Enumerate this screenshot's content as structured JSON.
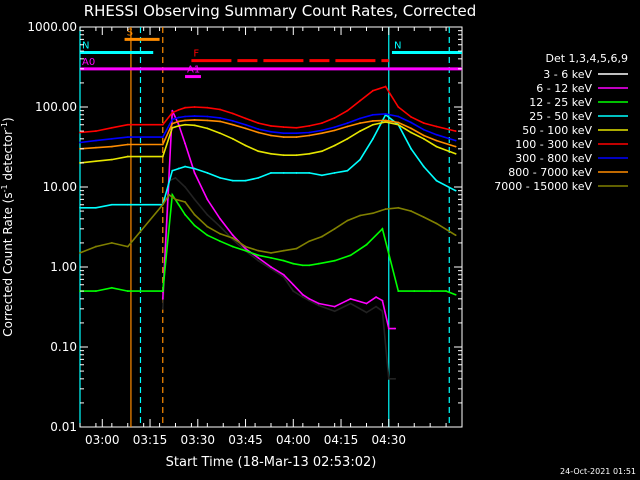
{
  "chart_data": {
    "type": "line",
    "title": "RHESSI Observing Summary Count Rates, Corrected",
    "xlabel": "Start Time (18-Mar-13 02:53:02)",
    "ylabel": "Corrected Count Rate (s⁻¹ detector⁻¹)",
    "ylabel_main": "Corrected Count Rate (s",
    "ylabel_mid": " detector",
    "ylabel_end": ")",
    "ylabel_sup": "-1",
    "y_scale": "log",
    "ylim": [
      0.01,
      1000
    ],
    "xlim_minutes": [
      0,
      120
    ],
    "x_tick_labels": [
      "03:00",
      "03:15",
      "03:30",
      "03:45",
      "04:00",
      "04:15",
      "04:30"
    ],
    "x_tick_minutes": [
      7,
      22,
      37,
      52,
      67,
      82,
      97
    ],
    "y_tick_labels": [
      "0.01",
      "0.10",
      "1.00",
      "10.00",
      "100.00",
      "1000.00"
    ],
    "y_tick_values": [
      0.01,
      0.1,
      1,
      10,
      100,
      1000
    ],
    "legend_title": "Det 1,3,4,5,6,9",
    "legend_position": "right",
    "timestamp": "24-Oct-2021 01:51",
    "flags": [
      {
        "label": "S",
        "color": "#ff8c00",
        "start": 14,
        "end": 25,
        "y": 700
      },
      {
        "label": "N",
        "color": "#00ffff",
        "start": 0,
        "end": 23,
        "y": 480
      },
      {
        "label": "N",
        "color": "#00ffff",
        "start": 98,
        "end": 120,
        "y": 480
      },
      {
        "label": "F",
        "color": "#ff0000",
        "start": 35,
        "end": 97,
        "y": 380
      },
      {
        "label": "A0",
        "color": "#ff00ff",
        "start": 0,
        "end": 120,
        "y": 300
      },
      {
        "label": "A1",
        "color": "#ff00ff",
        "start": 33,
        "end": 38,
        "y": 240
      }
    ],
    "vertical_markers": [
      {
        "minute": 16,
        "color": "#ff8c00",
        "style": "solid"
      },
      {
        "minute": 19,
        "color": "#00ffff",
        "style": "dashed"
      },
      {
        "minute": 26,
        "color": "#ff8c00",
        "style": "dashed"
      },
      {
        "minute": 97,
        "color": "#00ffff",
        "style": "solid"
      },
      {
        "minute": 116,
        "color": "#00ffff",
        "style": "dashed"
      },
      {
        "minute": 0,
        "color": "#00ffff",
        "style": "solid"
      }
    ],
    "series": [
      {
        "name": "3 - 6 keV",
        "color": "#000000",
        "x": [
          26,
          28,
          30,
          33,
          36,
          40,
          44,
          48,
          52,
          56,
          60,
          64,
          67,
          70,
          72,
          75,
          80,
          85,
          90,
          93,
          95,
          97,
          99
        ],
        "y": [
          0.3,
          12,
          13,
          10,
          7,
          4.5,
          3.2,
          2.2,
          1.6,
          1.2,
          0.95,
          0.75,
          0.5,
          0.42,
          0.38,
          0.33,
          0.28,
          0.35,
          0.27,
          0.32,
          0.28,
          0.04,
          0.04
        ]
      },
      {
        "name": "6 - 12 keV",
        "color": "#ff00ff",
        "x": [
          26,
          29,
          31,
          33,
          36,
          40,
          44,
          48,
          52,
          56,
          60,
          64,
          67,
          70,
          72,
          75,
          80,
          85,
          90,
          93,
          95,
          97,
          99
        ],
        "y": [
          0.4,
          90,
          60,
          35,
          15,
          7,
          4,
          2.5,
          1.7,
          1.3,
          1.0,
          0.8,
          0.6,
          0.45,
          0.4,
          0.35,
          0.32,
          0.4,
          0.35,
          0.42,
          0.38,
          0.17,
          0.17
        ]
      },
      {
        "name": "12 - 25 keV",
        "color": "#00ff00",
        "x": [
          0,
          5,
          10,
          15,
          26,
          29,
          31,
          33,
          36,
          40,
          44,
          48,
          52,
          56,
          60,
          64,
          67,
          70,
          72,
          75,
          80,
          85,
          90,
          95,
          100,
          105,
          110,
          115,
          118
        ],
        "y": [
          0.5,
          0.5,
          0.55,
          0.5,
          0.5,
          8,
          6,
          4.5,
          3.3,
          2.5,
          2.1,
          1.8,
          1.6,
          1.4,
          1.3,
          1.2,
          1.1,
          1.05,
          1.05,
          1.1,
          1.2,
          1.4,
          1.9,
          3.0,
          0.5,
          0.5,
          0.5,
          0.5,
          0.45
        ]
      },
      {
        "name": "25 - 50 keV",
        "color": "#00ffff",
        "x": [
          0,
          5,
          10,
          15,
          26,
          29,
          31,
          33,
          36,
          40,
          44,
          48,
          52,
          56,
          60,
          64,
          68,
          72,
          76,
          80,
          84,
          88,
          92,
          96,
          100,
          104,
          108,
          112,
          118
        ],
        "y": [
          5.5,
          5.5,
          6,
          6,
          6,
          16,
          17,
          18,
          17,
          15,
          13,
          12,
          12,
          13,
          15,
          15,
          15,
          15,
          14,
          15,
          16,
          22,
          40,
          80,
          60,
          30,
          18,
          12,
          9
        ]
      },
      {
        "name": "50 - 100 keV",
        "color": "#e6e600",
        "x": [
          0,
          5,
          10,
          15,
          26,
          29,
          31,
          33,
          36,
          40,
          44,
          48,
          52,
          56,
          60,
          64,
          68,
          72,
          76,
          80,
          84,
          88,
          92,
          96,
          100,
          104,
          108,
          112,
          118
        ],
        "y": [
          20,
          21,
          22,
          24,
          24,
          55,
          58,
          60,
          59,
          54,
          47,
          40,
          33,
          28,
          26,
          25,
          25,
          26,
          28,
          33,
          40,
          50,
          60,
          65,
          60,
          48,
          40,
          32,
          26
        ]
      },
      {
        "name": "100 - 300 keV",
        "color": "#ff0000",
        "x": [
          0,
          5,
          10,
          15,
          26,
          29,
          31,
          33,
          36,
          40,
          44,
          48,
          52,
          56,
          60,
          64,
          68,
          72,
          76,
          80,
          84,
          88,
          92,
          96,
          100,
          104,
          108,
          112,
          118
        ],
        "y": [
          48,
          50,
          55,
          60,
          60,
          85,
          92,
          98,
          100,
          98,
          93,
          83,
          72,
          63,
          58,
          56,
          55,
          58,
          63,
          73,
          90,
          120,
          160,
          180,
          100,
          75,
          63,
          57,
          50
        ]
      },
      {
        "name": "300 - 800 keV",
        "color": "#0000ff",
        "x": [
          0,
          5,
          10,
          15,
          26,
          29,
          31,
          33,
          36,
          40,
          44,
          48,
          52,
          56,
          60,
          64,
          68,
          72,
          76,
          80,
          84,
          88,
          92,
          96,
          100,
          104,
          108,
          112,
          118
        ],
        "y": [
          36,
          38,
          40,
          42,
          42,
          70,
          74,
          76,
          77,
          76,
          73,
          67,
          60,
          53,
          49,
          47,
          47,
          48,
          51,
          56,
          63,
          72,
          80,
          82,
          76,
          64,
          52,
          45,
          38
        ]
      },
      {
        "name": "800 - 7000 keV",
        "color": "#ff8c00",
        "x": [
          0,
          5,
          10,
          15,
          26,
          29,
          31,
          33,
          36,
          40,
          44,
          48,
          52,
          56,
          60,
          64,
          68,
          72,
          76,
          80,
          84,
          88,
          92,
          96,
          100,
          104,
          108,
          112,
          118
        ],
        "y": [
          30,
          31,
          32,
          34,
          34,
          62,
          66,
          68,
          69,
          68,
          66,
          60,
          54,
          48,
          44,
          42,
          42,
          44,
          47,
          51,
          57,
          63,
          67,
          68,
          64,
          54,
          44,
          38,
          32
        ]
      },
      {
        "name": "7000 - 15000 keV",
        "color": "#808000",
        "x": [
          0,
          5,
          10,
          15,
          26,
          28,
          30,
          33,
          36,
          40,
          44,
          48,
          52,
          56,
          60,
          64,
          68,
          72,
          76,
          80,
          84,
          88,
          92,
          96,
          100,
          104,
          108,
          112,
          118
        ],
        "y": [
          1.5,
          1.8,
          2.0,
          1.8,
          6,
          8,
          7,
          6.5,
          4.5,
          3.2,
          2.6,
          2.3,
          1.8,
          1.6,
          1.5,
          1.6,
          1.7,
          2.1,
          2.4,
          3.0,
          3.8,
          4.4,
          4.7,
          5.3,
          5.5,
          5.0,
          4.2,
          3.5,
          2.5
        ]
      }
    ]
  }
}
